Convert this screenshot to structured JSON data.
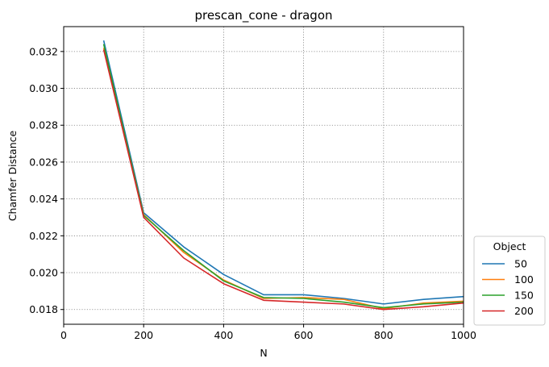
{
  "chart_data": {
    "type": "line",
    "title": "prescan_cone - dragon",
    "xlabel": "N",
    "ylabel": "Chamfer Distance",
    "xlim": [
      0,
      1000
    ],
    "ylim": [
      0.0172,
      0.03335
    ],
    "xticks": [
      0,
      200,
      400,
      600,
      800,
      1000
    ],
    "yticks": [
      0.018,
      0.02,
      0.022,
      0.024,
      0.026,
      0.028,
      0.03,
      0.032
    ],
    "grid": true,
    "legend": {
      "title": "Object",
      "placement": "outside-bottom-right"
    },
    "x": [
      100,
      200,
      300,
      400,
      500,
      600,
      700,
      800,
      900,
      1000
    ],
    "series": [
      {
        "name": "50",
        "color": "#1f77b4",
        "values": [
          0.0326,
          0.02325,
          0.0214,
          0.0199,
          0.0188,
          0.0188,
          0.0186,
          0.0183,
          0.01855,
          0.0187
        ]
      },
      {
        "name": "100",
        "color": "#ff7f0e",
        "values": [
          0.0322,
          0.02315,
          0.0211,
          0.0196,
          0.0186,
          0.01865,
          0.01855,
          0.01805,
          0.01835,
          0.01845
        ]
      },
      {
        "name": "150",
        "color": "#2ca02c",
        "values": [
          0.0324,
          0.0231,
          0.0212,
          0.01955,
          0.01865,
          0.0186,
          0.0184,
          0.0181,
          0.0183,
          0.0184
        ]
      },
      {
        "name": "200",
        "color": "#d62728",
        "values": [
          0.0321,
          0.023,
          0.0208,
          0.0194,
          0.0185,
          0.0184,
          0.0183,
          0.018,
          0.01815,
          0.01835
        ]
      }
    ]
  }
}
